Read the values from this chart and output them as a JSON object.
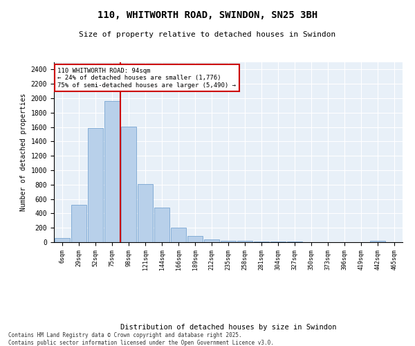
{
  "title": "110, WHITWORTH ROAD, SWINDON, SN25 3BH",
  "subtitle": "Size of property relative to detached houses in Swindon",
  "xlabel": "Distribution of detached houses by size in Swindon",
  "ylabel": "Number of detached properties",
  "bar_color": "#b8d0ea",
  "bar_edgecolor": "#6699cc",
  "background_color": "#e8f0f8",
  "grid_color": "#ffffff",
  "vline_x": 3,
  "vline_color": "#cc0000",
  "annotation_text": "110 WHITWORTH ROAD: 94sqm\n← 24% of detached houses are smaller (1,776)\n75% of semi-detached houses are larger (5,490) →",
  "annotation_box_color": "#cc0000",
  "footer": "Contains HM Land Registry data © Crown copyright and database right 2025.\nContains public sector information licensed under the Open Government Licence v3.0.",
  "categories": [
    "6sqm",
    "29sqm",
    "52sqm",
    "75sqm",
    "98sqm",
    "121sqm",
    "144sqm",
    "166sqm",
    "189sqm",
    "212sqm",
    "235sqm",
    "258sqm",
    "281sqm",
    "304sqm",
    "327sqm",
    "350sqm",
    "373sqm",
    "396sqm",
    "419sqm",
    "442sqm",
    "465sqm"
  ],
  "values": [
    55,
    515,
    1590,
    1960,
    1610,
    810,
    485,
    200,
    90,
    35,
    20,
    18,
    5,
    5,
    5,
    0,
    0,
    0,
    0,
    20,
    0
  ],
  "ylim": [
    0,
    2500
  ],
  "yticks": [
    0,
    200,
    400,
    600,
    800,
    1000,
    1200,
    1400,
    1600,
    1800,
    2000,
    2200,
    2400
  ]
}
